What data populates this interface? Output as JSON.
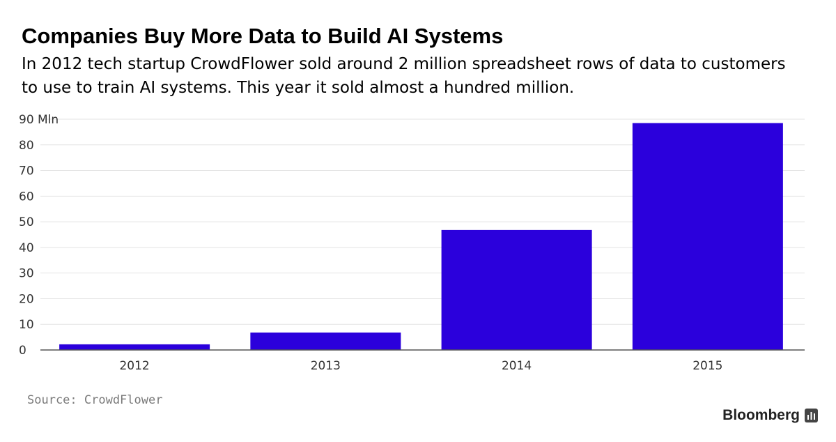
{
  "chart_data": {
    "type": "bar",
    "title": "Companies Buy More Data to Build AI Systems",
    "subtitle": "In 2012 tech startup CrowdFlower sold around 2 million spreadsheet rows of data to customers to use to train AI systems. This year it sold almost a hundred million.",
    "categories": [
      "2012",
      "2013",
      "2014",
      "2015"
    ],
    "values": [
      2.2,
      6.8,
      46.8,
      88.5
    ],
    "ylim": [
      0,
      90
    ],
    "yticks": [
      0,
      10,
      20,
      30,
      40,
      50,
      60,
      70,
      80,
      90
    ],
    "yunit": "Mln",
    "grid": true,
    "bar_color": "#2b00dc",
    "source": "Source: CrowdFlower"
  },
  "brand": {
    "name": "Bloomberg",
    "icon": "bloomberg-terminal-icon"
  }
}
